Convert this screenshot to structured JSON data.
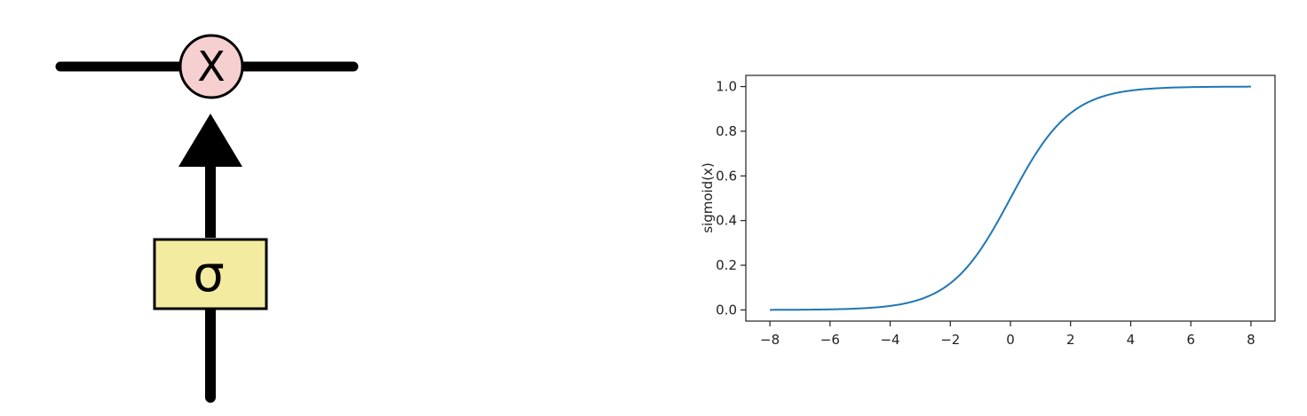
{
  "diagram": {
    "multiply_symbol": "X",
    "gate_symbol": "σ",
    "colors": {
      "line": "#000000",
      "multiply_fill": "#f6d0d0",
      "gate_fill": "#f3eba0"
    }
  },
  "chart_data": {
    "type": "line",
    "title": "",
    "xlabel": "",
    "ylabel": "sigmoid(x)",
    "xlim": [
      -8.8,
      8.8
    ],
    "ylim": [
      -0.05,
      1.05
    ],
    "xticks": [
      -8,
      -6,
      -4,
      -2,
      0,
      2,
      4,
      6,
      8
    ],
    "xtick_labels": [
      "−8",
      "−6",
      "−4",
      "−2",
      "0",
      "2",
      "4",
      "6",
      "8"
    ],
    "yticks": [
      0.0,
      0.2,
      0.4,
      0.6,
      0.8,
      1.0
    ],
    "ytick_labels": [
      "0.0",
      "0.2",
      "0.4",
      "0.6",
      "0.8",
      "1.0"
    ],
    "grid": false,
    "series": [
      {
        "color": "#1f77b4",
        "x": [
          -8,
          -7,
          -6,
          -5,
          -4,
          -3,
          -2.5,
          -2,
          -1.5,
          -1,
          -0.5,
          0,
          0.5,
          1,
          1.5,
          2,
          2.5,
          3,
          4,
          5,
          6,
          7,
          8
        ],
        "y": [
          0.0003,
          0.0009,
          0.0025,
          0.0067,
          0.018,
          0.0474,
          0.0759,
          0.1192,
          0.1824,
          0.2689,
          0.3775,
          0.5,
          0.6225,
          0.7311,
          0.8176,
          0.8808,
          0.9241,
          0.9526,
          0.982,
          0.9933,
          0.9975,
          0.9991,
          0.9997
        ]
      }
    ]
  }
}
